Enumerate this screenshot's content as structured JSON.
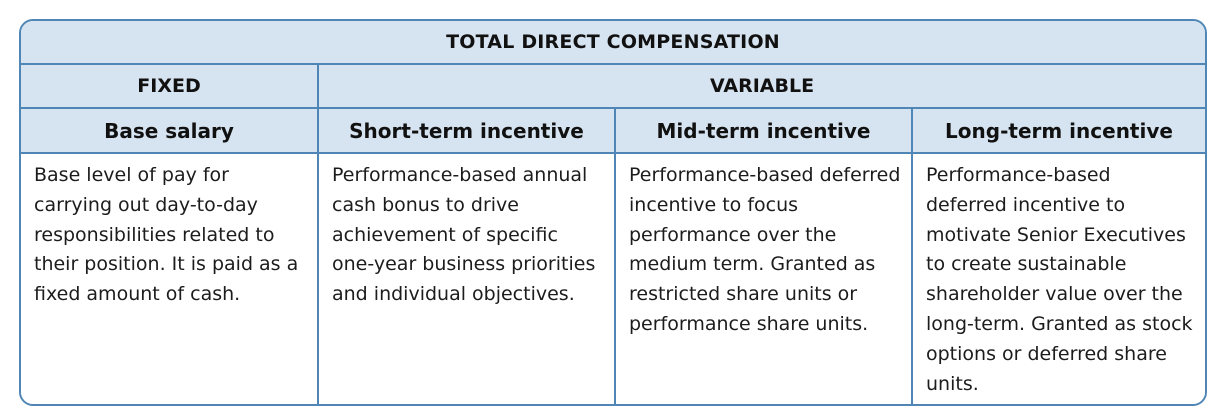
{
  "title": "TOTAL DIRECT COMPENSATION",
  "groups": {
    "fixed": "FIXED",
    "variable": "VARIABLE"
  },
  "columns": [
    {
      "heading": "Base salary",
      "description": "Base level of pay for carrying out day-to-day responsibilities related to their position. It is paid as a fixed amount of cash."
    },
    {
      "heading": "Short-term incentive",
      "description": "Performance-based annual cash bonus to drive achievement of specific one-year business priorities and individual objectives."
    },
    {
      "heading": "Mid-term incentive",
      "description": "Performance-based deferred incentive to focus performance over the medium term. Granted as restricted share units or performance share units."
    },
    {
      "heading": "Long-term incentive",
      "description": "Performance-based deferred incentive to motivate Senior Executives to create sustainable shareholder value over the long-term. Granted as stock options or deferred share units."
    }
  ],
  "colors": {
    "border": "#4f86b5",
    "header_fill": "#d6e3f0",
    "text": "#1a1a1a"
  }
}
